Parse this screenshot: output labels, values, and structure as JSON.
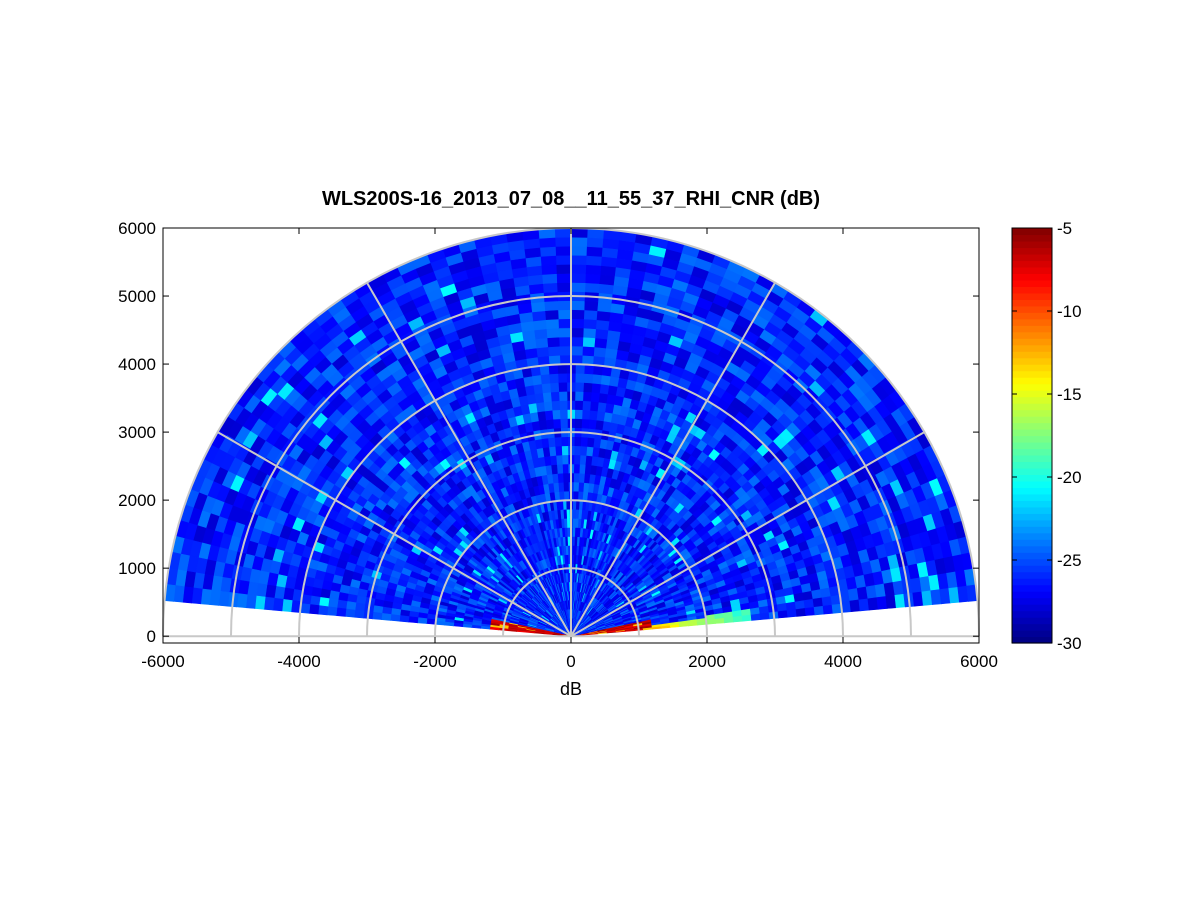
{
  "chart_data": {
    "type": "heatmap",
    "subtype": "polar-rhi-scan",
    "title": "WLS200S-16_2013_07_08__11_55_37_RHI_CNR (dB)",
    "xlabel": "dB",
    "ylabel": "",
    "xlim": [
      -6000,
      6000
    ],
    "ylim": [
      -100,
      6000
    ],
    "x_ticks": [
      "-6000",
      "-4000",
      "-2000",
      "0",
      "2000",
      "4000",
      "6000"
    ],
    "y_ticks": [
      "0",
      "1000",
      "2000",
      "3000",
      "4000",
      "5000",
      "6000"
    ],
    "polar_grid": {
      "range_rings": [
        1000,
        2000,
        3000,
        4000,
        5000,
        6000
      ],
      "spokes_deg": [
        0,
        30,
        60,
        90,
        120,
        150,
        180
      ]
    },
    "scan": {
      "elevation_range_deg": [
        5,
        175
      ],
      "max_range": 6000,
      "gate_count": 45,
      "background_cnr_db": [
        -28,
        -24
      ],
      "near_field_hot_region": {
        "max_range": 1200,
        "max_elevation_deg": 12,
        "cnr_db": [
          -8,
          -5
        ]
      },
      "low_elevation_enhanced_region": {
        "range": [
          1000,
          2700
        ],
        "elevation_deg": [
          5,
          8
        ],
        "cnr_db": [
          -20,
          -12
        ]
      }
    },
    "colorbar": {
      "colormap": "jet",
      "clim": [
        -30,
        -5
      ],
      "ticks": [
        "-5",
        "-10",
        "-15",
        "-20",
        "-25",
        "-30"
      ]
    },
    "grid": true,
    "legend": "none"
  }
}
